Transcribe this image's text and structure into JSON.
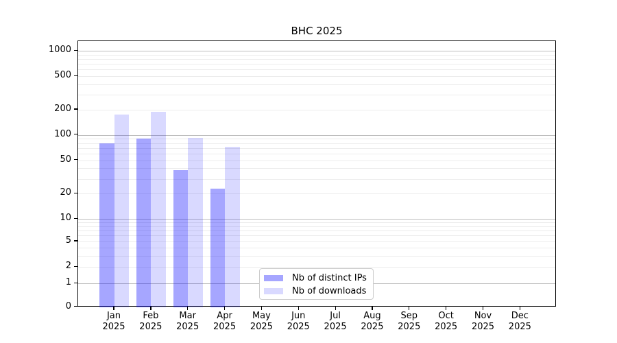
{
  "chart_data": {
    "type": "bar",
    "title": "BHC 2025",
    "categories": [
      "Jan",
      "Feb",
      "Mar",
      "Apr",
      "May",
      "Jun",
      "Jul",
      "Aug",
      "Sep",
      "Oct",
      "Nov",
      "Dec"
    ],
    "category_year": "2025",
    "series": [
      {
        "name": "Nb of distinct IPs",
        "color": "rgba(0,0,255,0.35)",
        "values": [
          80,
          90,
          38,
          23,
          0,
          0,
          0,
          0,
          0,
          0,
          0,
          0
        ]
      },
      {
        "name": "Nb of downloads",
        "color": "rgba(0,0,255,0.15)",
        "values": [
          175,
          190,
          93,
          72,
          0,
          0,
          0,
          0,
          0,
          0,
          0,
          0
        ]
      }
    ],
    "y_axis": {
      "scale": "symlog",
      "tick_labels": [
        0,
        1,
        2,
        5,
        10,
        20,
        50,
        100,
        200,
        500,
        1000
      ],
      "range": [
        0,
        1000
      ],
      "major_grid_values": [
        1,
        10,
        100,
        1000
      ],
      "minor_grid_subs": [
        2,
        3,
        4,
        5,
        6,
        7,
        8,
        9
      ]
    },
    "grid": "on",
    "legend_position": "lower center",
    "colors": {
      "major_grid": "#bdbdbd",
      "minor_grid": "#ececec",
      "axis": "#000000",
      "background": "#ffffff"
    }
  }
}
